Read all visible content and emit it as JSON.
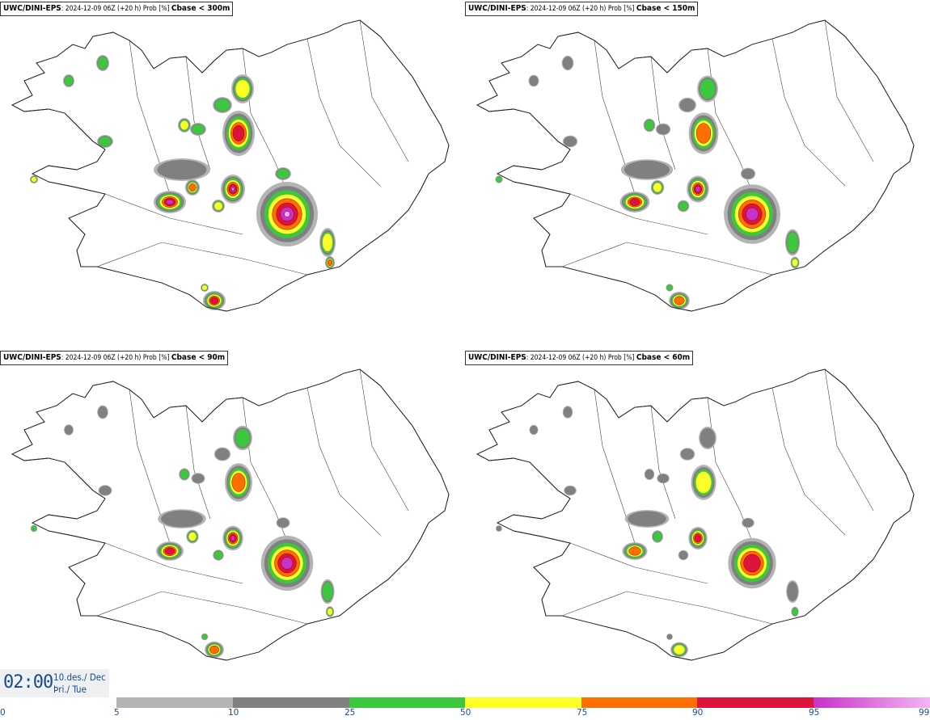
{
  "panels": [
    {
      "model": "UWC/DINI-EPS",
      "meta": ": 2024-12-09 06Z (+20 h) Prob [%] ",
      "threshold": "Cbase < 300m"
    },
    {
      "model": "UWC/DINI-EPS",
      "meta": ": 2024-12-09 06Z (+20 h) Prob [%] ",
      "threshold": "Cbase < 150m"
    },
    {
      "model": "UWC/DINI-EPS",
      "meta": ": 2024-12-09 06Z (+20 h) Prob [%] ",
      "threshold": "Cbase < 90m"
    },
    {
      "model": "UWC/DINI-EPS",
      "meta": ": 2024-12-09 06Z (+20 h) Prob [%] ",
      "threshold": "Cbase < 60m"
    }
  ],
  "valid_time": {
    "clock": "02:00",
    "date_line1": "10.des./ Dec",
    "date_line2": "Þri./ Tue"
  },
  "legend": {
    "ticks": [
      "0",
      "5",
      "10",
      "25",
      "50",
      "75",
      "90",
      "95",
      "99"
    ],
    "colors": {
      "5-10": "#b4b4b4",
      "10-25": "#808080",
      "25-50": "#3cc83c",
      "50-75": "#ffff28",
      "75-90": "#ff6e00",
      "90-95": "#dc143c",
      "95-99": "#c832c8",
      "99": "#f5b4f5"
    }
  }
}
